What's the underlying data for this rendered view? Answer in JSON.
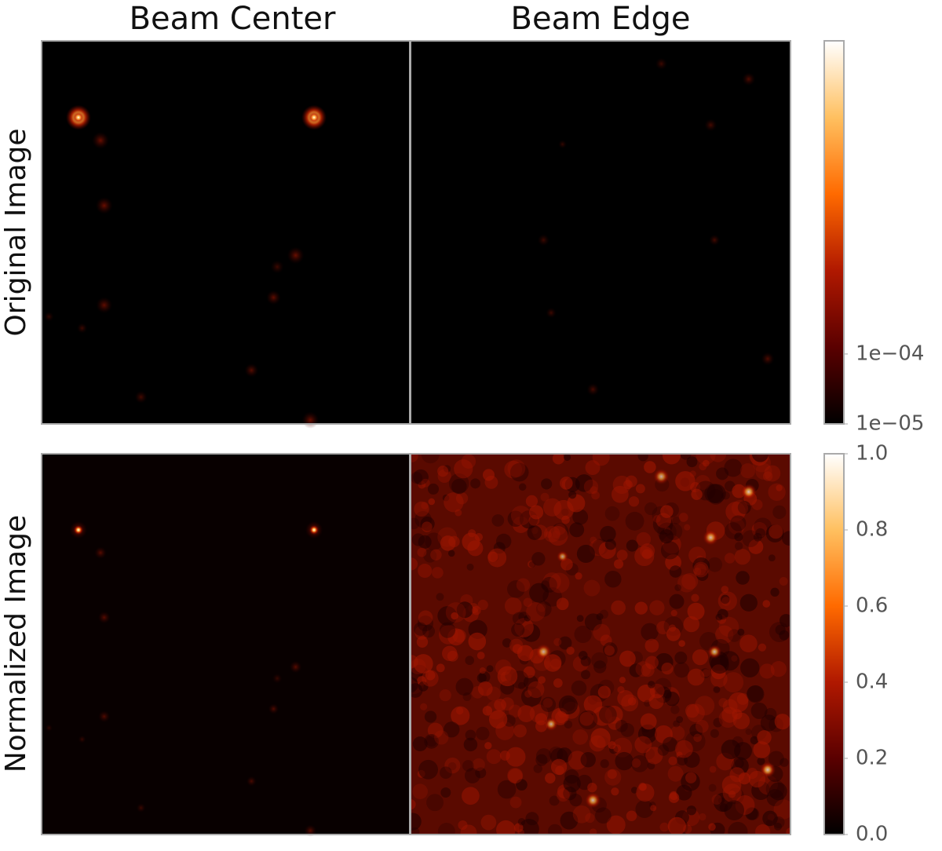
{
  "chart_data": {
    "type": "image-grid",
    "columns": [
      "Beam Center",
      "Beam Edge"
    ],
    "rows": [
      "Original Image",
      "Normalized Image"
    ],
    "colormap": [
      "#000000",
      "#5a0000",
      "#b01800",
      "#ff6a00",
      "#ffc060",
      "#ffffff"
    ],
    "colorbars": [
      {
        "scale": "log",
        "zlim": [
          1e-05,
          3
        ],
        "ticks": [
          {
            "value": 1e-05,
            "label": "1e−05"
          },
          {
            "value": 0.0001,
            "label": "1e−04"
          }
        ]
      },
      {
        "scale": "linear",
        "zlim": [
          0,
          1
        ],
        "ticks": [
          {
            "value": 0,
            "label": "0.0"
          },
          0.2,
          0.4,
          0.6,
          0.8,
          {
            "value": 1,
            "label": "1.0"
          }
        ]
      }
    ]
  }
}
